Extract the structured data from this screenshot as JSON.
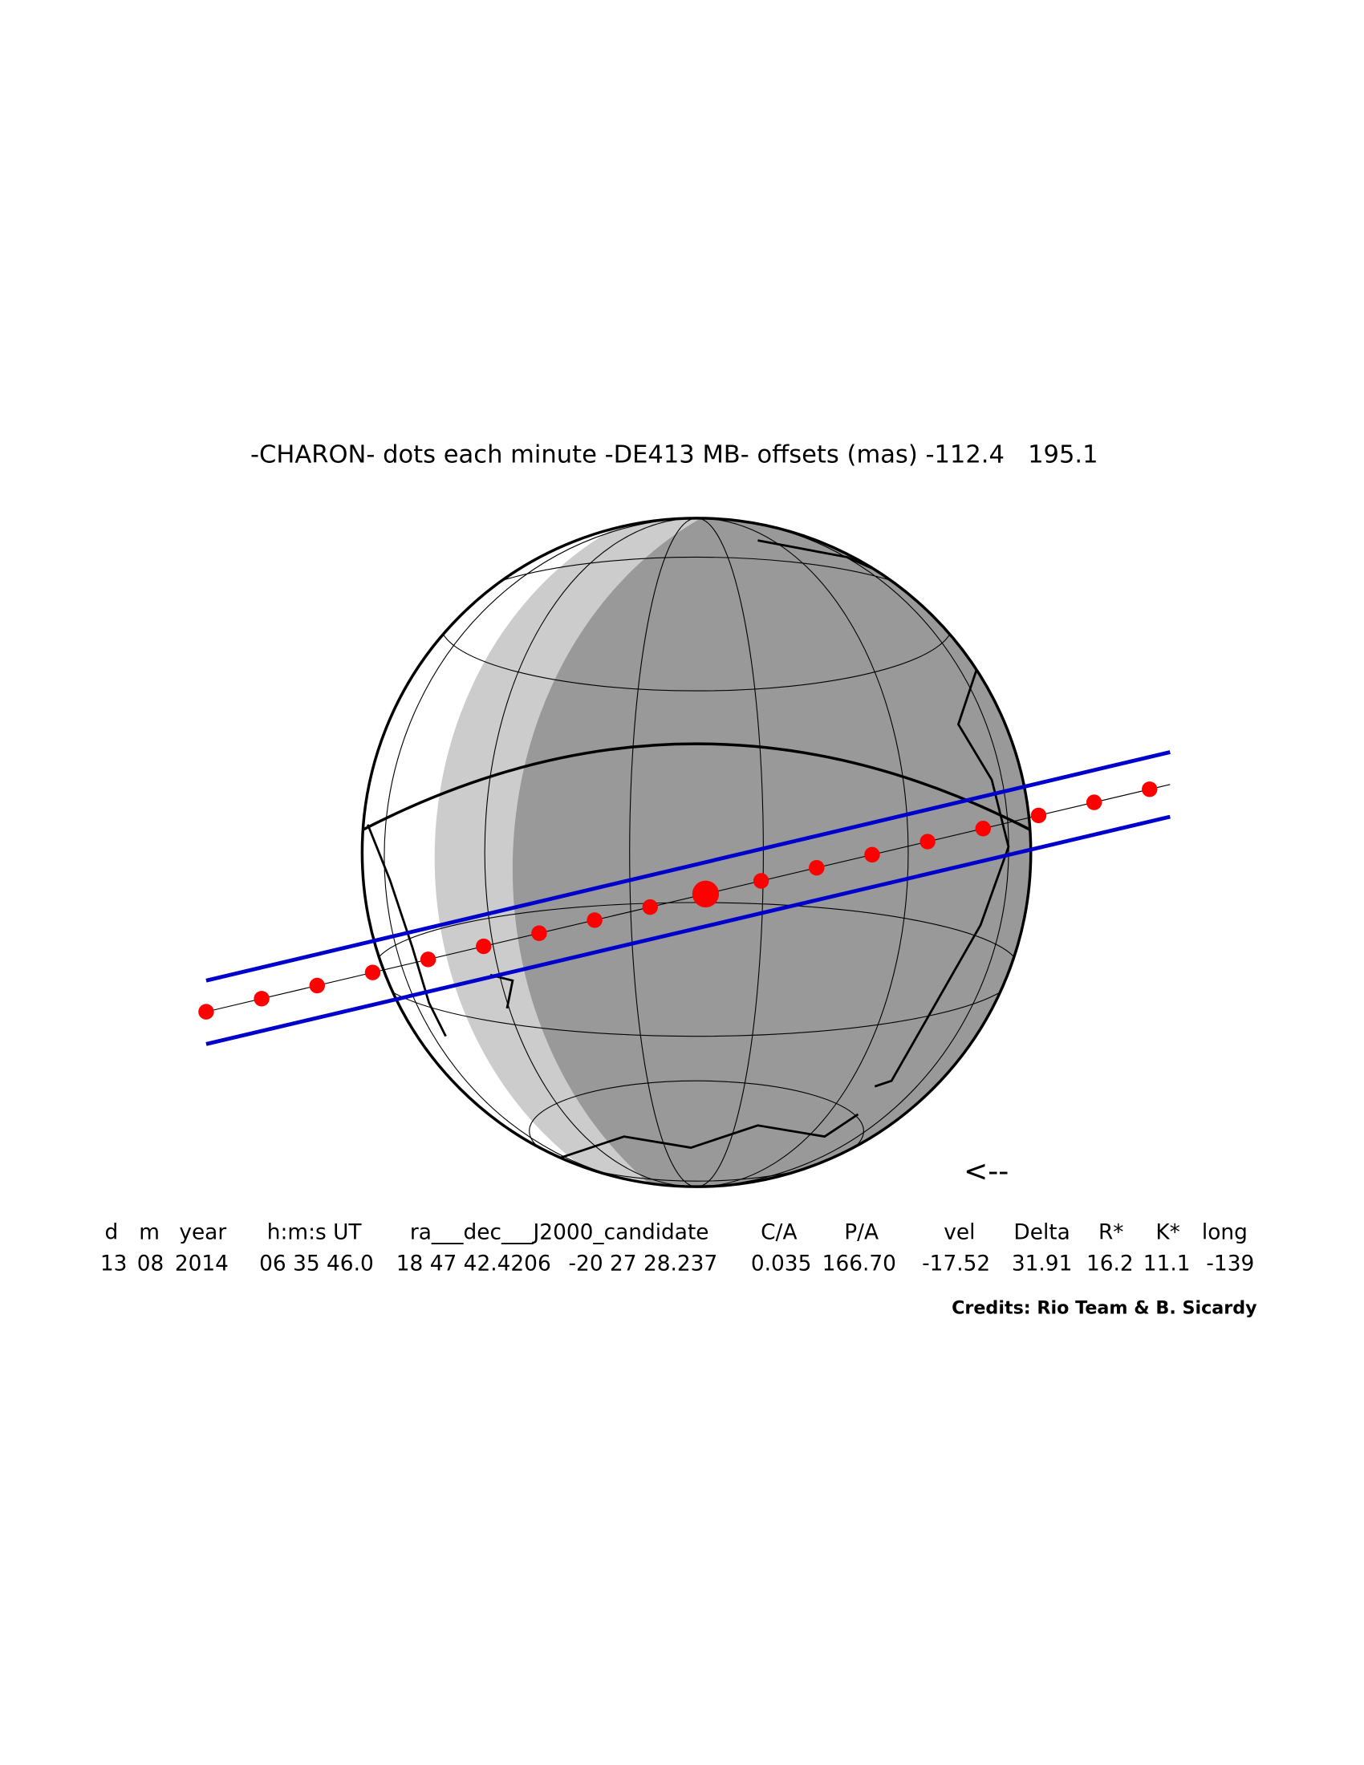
{
  "header": {
    "title": "-CHARON- dots each minute -DE413 MB- offsets (mas) -112.4   195.1"
  },
  "direction_arrow": "<--",
  "table": {
    "headers": [
      "d",
      "m",
      "year",
      "h:m:s UT",
      "ra___dec___J2000_candidate",
      "C/A",
      "P/A",
      "vel",
      "Delta",
      "R*",
      "K*",
      "long"
    ],
    "values": [
      "13",
      "08",
      "2014",
      "06 35 46.0",
      "18 47 42.4206",
      "-20 27 28.237",
      "0.035",
      "166.70",
      "-17.52",
      "31.91",
      "16.2",
      "11.1",
      "-139"
    ]
  },
  "credits": "Credits: Rio Team & B. Sicardy"
}
